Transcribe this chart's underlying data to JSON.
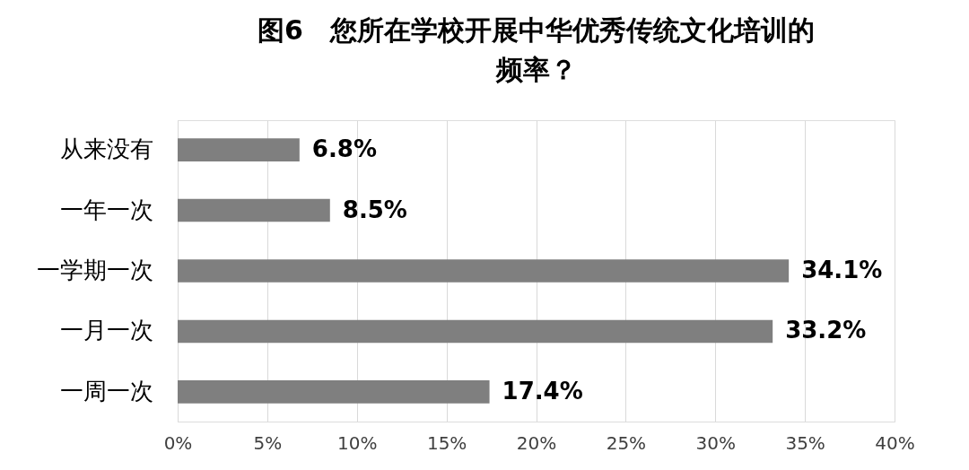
{
  "chart_data": {
    "type": "bar",
    "orientation": "horizontal",
    "title": "图6　您所在学校开展中华优秀传统文化培训的频率？",
    "categories": [
      "从来没有",
      "一年一次",
      "一学期一次",
      "一月一次",
      "一周一次"
    ],
    "values": [
      6.8,
      8.5,
      34.1,
      33.2,
      17.4
    ],
    "value_labels": [
      "6.8%",
      "8.5%",
      "34.1%",
      "33.2%",
      "17.4%"
    ],
    "color": "#7f7f7f",
    "xlim": [
      0,
      40
    ],
    "xticks": [
      {
        "value": 0,
        "label": "0%"
      },
      {
        "value": 5,
        "label": "5%"
      },
      {
        "value": 10,
        "label": "10%"
      },
      {
        "value": 15,
        "label": "15%"
      },
      {
        "value": 20,
        "label": "20%"
      },
      {
        "value": 25,
        "label": "25%"
      },
      {
        "value": 30,
        "label": "30%"
      },
      {
        "value": 35,
        "label": "35%"
      },
      {
        "value": 40,
        "label": "40%"
      }
    ],
    "grid": "x"
  }
}
